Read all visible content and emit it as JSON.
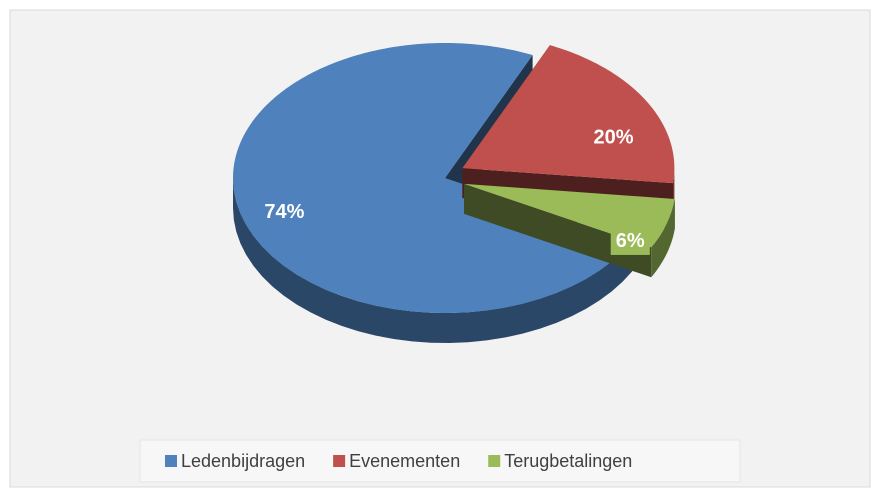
{
  "chart_data": {
    "type": "pie",
    "categories": [
      "Ledenbijdragen",
      "Evenementen",
      "Terugbetalingen"
    ],
    "values": [
      74,
      20,
      6
    ],
    "value_labels": [
      "74%",
      "20%",
      "6%"
    ],
    "colors": [
      "#4f81bd",
      "#c0504d",
      "#9bbb59"
    ],
    "legend": "bottom"
  }
}
